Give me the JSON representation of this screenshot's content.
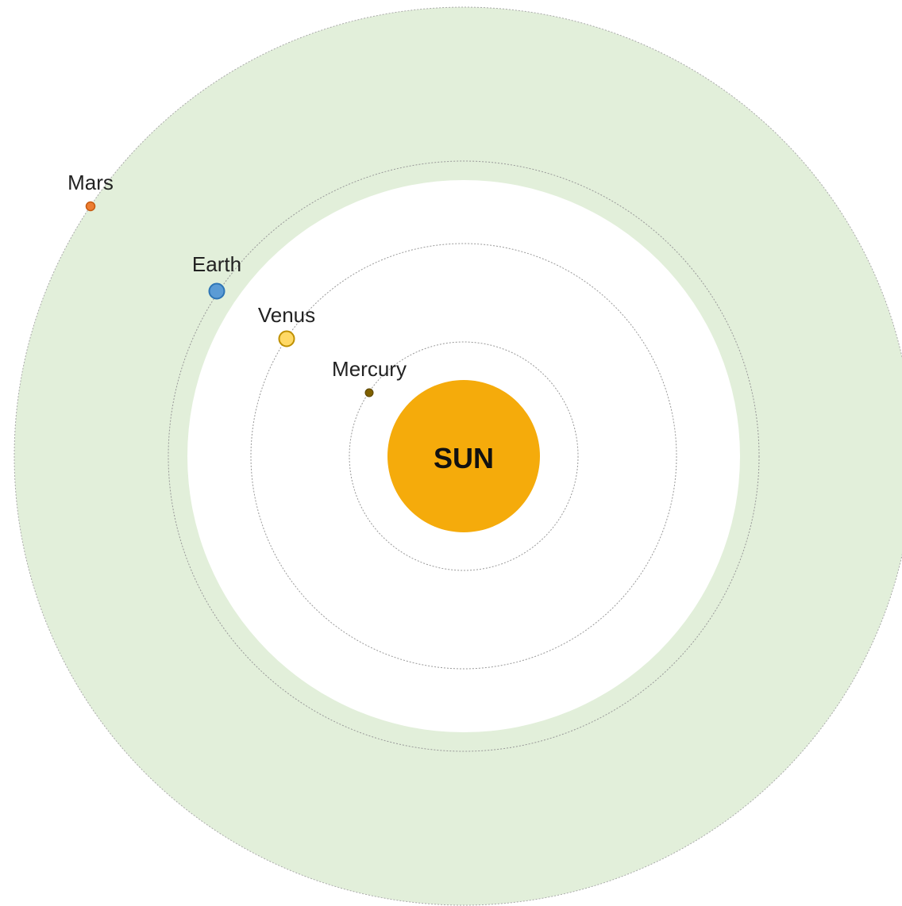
{
  "sun": {
    "label": "SUN"
  },
  "planets": [
    {
      "label": "Mercury"
    },
    {
      "label": "Venus"
    },
    {
      "label": "Earth"
    },
    {
      "label": "Mars"
    }
  ]
}
